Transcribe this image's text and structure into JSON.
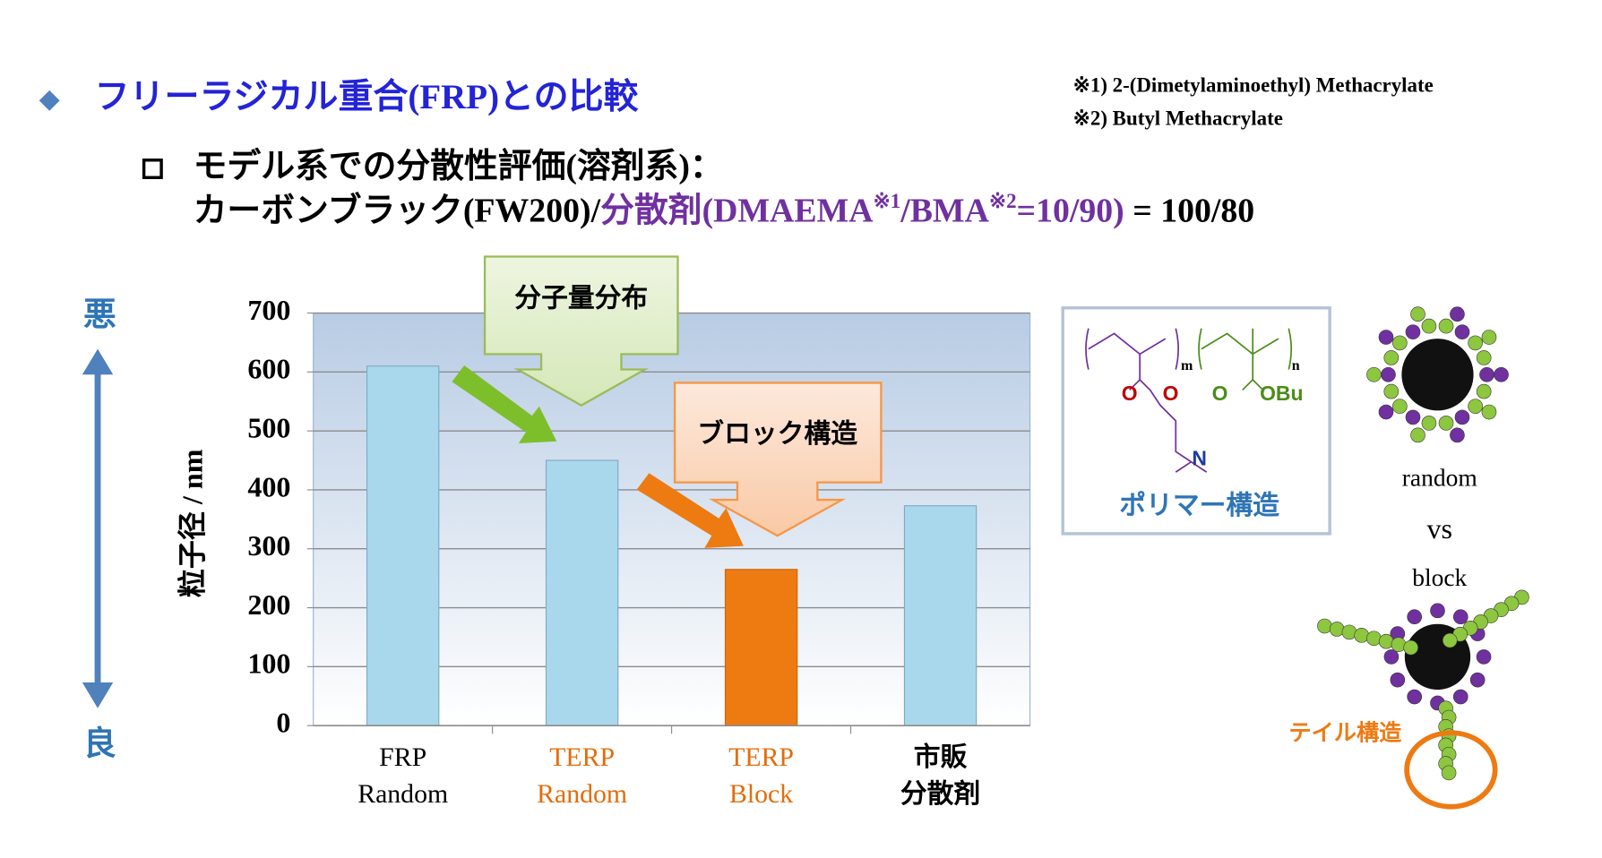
{
  "header": {
    "title": "フリーラジカル重合(FRP)との比較",
    "notes": [
      "※1) 2-(Dimetylaminoethyl) Methacrylate",
      "※2) Butyl Methacrylate"
    ],
    "subtitle": "モデル系での分散性評価(溶剤系)：",
    "condition": [
      {
        "text": "カーボンブラック(FW200)/",
        "color": "#000000"
      },
      {
        "text": "分散剤(DMAEMA",
        "color": "#7030a0"
      },
      {
        "text": "※1",
        "color": "#7030a0",
        "sup": true
      },
      {
        "text": "/BMA",
        "color": "#7030a0"
      },
      {
        "text": "※2",
        "color": "#7030a0",
        "sup": true
      },
      {
        "text": "=10/90)",
        "color": "#7030a0"
      },
      {
        "text": " = 100/80",
        "color": "#000000"
      }
    ]
  },
  "chart_data": {
    "type": "bar",
    "ylabel": "粒子径 / nm",
    "ylim": [
      0,
      700
    ],
    "yticks": [
      0,
      100,
      200,
      300,
      400,
      500,
      600,
      700
    ],
    "grid": true,
    "categories": [
      [
        "FRP",
        "Random"
      ],
      [
        "TERP",
        "Random"
      ],
      [
        "TERP",
        "Block"
      ],
      [
        "市販",
        "分散剤"
      ]
    ],
    "values": [
      610,
      450,
      265,
      373
    ],
    "colors": [
      "#a9d8ec",
      "#a9d8ec",
      "#ee7a12",
      "#a9d8ec"
    ],
    "label_colors": [
      "#000000",
      "#e46c0a",
      "#e46c0a",
      "#000000"
    ],
    "callouts": [
      "分子量分布",
      "ブロック構造"
    ],
    "scale_top": "悪",
    "scale_bottom": "良"
  },
  "polymer": {
    "labels": [
      "m",
      "n",
      "O",
      "O",
      "O",
      "OBu",
      "N"
    ],
    "caption": "ポリマー構造"
  },
  "particles": {
    "labels": [
      "random",
      "vs",
      "block"
    ],
    "tail": "テイル構造"
  }
}
